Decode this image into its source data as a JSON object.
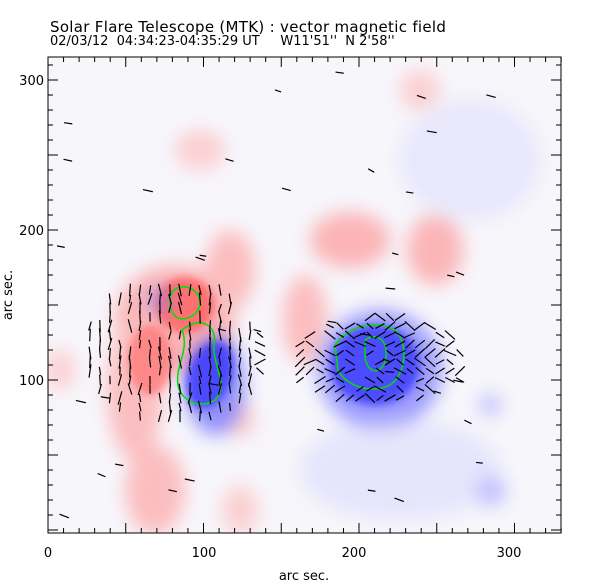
{
  "title": "Solar Flare Telescope (MTK) : vector magnetic field",
  "subtitle": "02/03/12  04:34:23-04:35:29 UT     W11'51''  N 2'58''",
  "chart_data": {
    "type": "heatmap",
    "title": "Solar Flare Telescope (MTK) : vector magnetic field",
    "subtitle": "02/03/12  04:34:23-04:35:29 UT     W11'51''  N 2'58''",
    "xlabel": "arc sec.",
    "ylabel": "arc sec.",
    "xlim": [
      0,
      330
    ],
    "ylim": [
      0,
      316
    ],
    "xticks": [
      "0",
      "100",
      "200",
      "300"
    ],
    "yticks": [
      "0",
      "100",
      "200",
      "300"
    ],
    "colors": {
      "positive": "#ff6060",
      "negative": "#4040ff",
      "contour": "#00e000",
      "vectors": "#000000"
    }
  }
}
